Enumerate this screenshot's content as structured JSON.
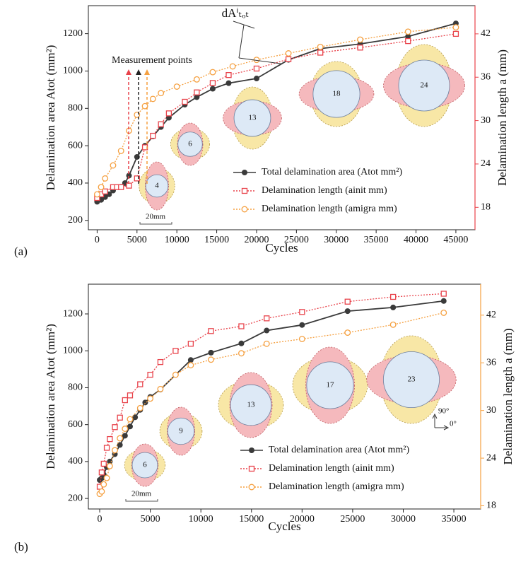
{
  "chart_data": [
    {
      "type": "line",
      "panel": "(a)",
      "x_label": "Cycles",
      "y_label": "Delamination area Atot (mm²)",
      "y2_label": "Delamination length a (mm)",
      "xlim": [
        -1100,
        47400
      ],
      "xticks": [
        0,
        5000,
        10000,
        15000,
        20000,
        25000,
        30000,
        35000,
        40000,
        45000
      ],
      "ylim": [
        150,
        1350
      ],
      "yticks": [
        200,
        400,
        600,
        800,
        1000,
        1200
      ],
      "y2lim": [
        14.9,
        45.9
      ],
      "y2ticks": [
        18,
        24,
        30,
        36,
        42
      ],
      "y2color": "#e8424a",
      "legend": "lower right",
      "series": [
        {
          "name": "Total delamination area (Atot mm²)",
          "color": "#3a3a3a",
          "marker": "circle",
          "style": "solid",
          "x": [
            0,
            500,
            1000,
            1500,
            2000,
            3000,
            3500,
            4000,
            5000,
            6000,
            7000,
            8000,
            9000,
            11000,
            12500,
            14500,
            16500,
            20000,
            24000,
            28000,
            33000,
            39000,
            45000
          ],
          "values": [
            300,
            310,
            325,
            340,
            360,
            380,
            400,
            440,
            540,
            600,
            650,
            700,
            750,
            820,
            860,
            905,
            935,
            960,
            1060,
            1120,
            1145,
            1185,
            1255
          ]
        },
        {
          "name": "Delamination length (ainit mm)",
          "color": "#e8424a",
          "marker": "square",
          "style": "dotted",
          "axis": "y2",
          "x": [
            0,
            500,
            1000,
            2000,
            2500,
            3000,
            4000,
            5000,
            6000,
            7000,
            8000,
            9000,
            11000,
            12500,
            14500,
            16500,
            20000,
            24000,
            28000,
            33000,
            39000,
            45000
          ],
          "values": [
            19.3,
            19.8,
            20.2,
            20.8,
            20.8,
            20.8,
            21.0,
            22.0,
            26.3,
            27.9,
            29.5,
            31.0,
            32.6,
            33.9,
            35.2,
            36.3,
            37.2,
            38.5,
            39.4,
            40.1,
            41.0,
            42.0
          ]
        },
        {
          "name": "Delamination length (amigra mm)",
          "color": "#f5a040",
          "marker": "circle-open",
          "style": "dotted",
          "axis": "y2",
          "x": [
            0,
            500,
            1000,
            2000,
            3000,
            4000,
            5000,
            6000,
            7000,
            8000,
            10000,
            12500,
            14500,
            17000,
            20000,
            24000,
            28000,
            33000,
            39000,
            45000
          ],
          "values": [
            19.8,
            20.8,
            22.0,
            23.8,
            25.8,
            28.6,
            30.8,
            32.0,
            33.0,
            33.8,
            34.7,
            35.7,
            36.7,
            37.5,
            38.4,
            39.3,
            40.2,
            41.2,
            42.3,
            42.9
          ]
        }
      ],
      "insets": [
        "4",
        "6",
        "13",
        "18",
        "24"
      ],
      "annotations": {
        "measurement": "Measurement points",
        "increment": "dAⁱₜₒₜ",
        "scale": "20mm"
      }
    },
    {
      "type": "line",
      "panel": "(b)",
      "x_label": "Cycles",
      "y_label": "Delamination area Atot (mm²)",
      "y2_label": "Delamination length a (mm)",
      "xlim": [
        -1120,
        37650
      ],
      "xticks": [
        0,
        5000,
        10000,
        15000,
        20000,
        25000,
        30000,
        35000
      ],
      "ylim": [
        143,
        1361
      ],
      "yticks": [
        200,
        400,
        600,
        800,
        1000,
        1200
      ],
      "y2lim": [
        17.6,
        45.9
      ],
      "y2ticks": [
        18,
        24,
        30,
        36,
        42
      ],
      "y2color": "#f5a040",
      "legend": "lower right",
      "series": [
        {
          "name": "Total delamination area (Atot mm²)",
          "color": "#3a3a3a",
          "marker": "circle",
          "style": "solid",
          "x": [
            0,
            200,
            400,
            700,
            1000,
            1500,
            2000,
            2500,
            3000,
            3500,
            4000,
            4500,
            5000,
            6000,
            7500,
            9000,
            11000,
            14000,
            16500,
            20000,
            24500,
            29000,
            34000
          ],
          "values": [
            300,
            310,
            330,
            370,
            400,
            440,
            490,
            540,
            590,
            640,
            680,
            720,
            750,
            790,
            870,
            950,
            990,
            1040,
            1110,
            1140,
            1215,
            1235,
            1270
          ]
        },
        {
          "name": "Delamination length (ainit mm)",
          "color": "#e8424a",
          "marker": "square",
          "style": "dotted",
          "axis": "y2",
          "x": [
            0,
            200,
            400,
            700,
            1000,
            1500,
            2000,
            2500,
            3000,
            4000,
            5000,
            6000,
            7500,
            9000,
            11000,
            14000,
            16500,
            20000,
            24500,
            29000,
            34000
          ],
          "values": [
            20.4,
            22.2,
            23.3,
            25.3,
            26.4,
            27.9,
            29.1,
            31.3,
            31.9,
            33.3,
            34.5,
            36.1,
            37.5,
            38.4,
            40.0,
            40.6,
            41.6,
            42.4,
            43.7,
            44.3,
            44.7
          ]
        },
        {
          "name": "Delamination length (amigra mm)",
          "color": "#f5a040",
          "marker": "circle-open",
          "style": "dotted",
          "axis": "y2",
          "x": [
            0,
            200,
            400,
            700,
            1000,
            1500,
            2000,
            2500,
            3000,
            4000,
            5000,
            6000,
            7500,
            9000,
            11000,
            14000,
            16500,
            20000,
            24500,
            29000,
            34000
          ],
          "values": [
            19.5,
            19.8,
            20.7,
            21.5,
            23.0,
            25.0,
            26.5,
            27.7,
            28.9,
            30.3,
            31.5,
            32.7,
            34.5,
            35.7,
            36.4,
            37.2,
            38.4,
            39.0,
            39.8,
            40.8,
            42.3
          ]
        }
      ],
      "insets": [
        "6",
        "9",
        "13",
        "17",
        "23"
      ],
      "annotations": {
        "scale": "20mm",
        "dir_y": "90°",
        "dir_x": "0°"
      }
    }
  ]
}
